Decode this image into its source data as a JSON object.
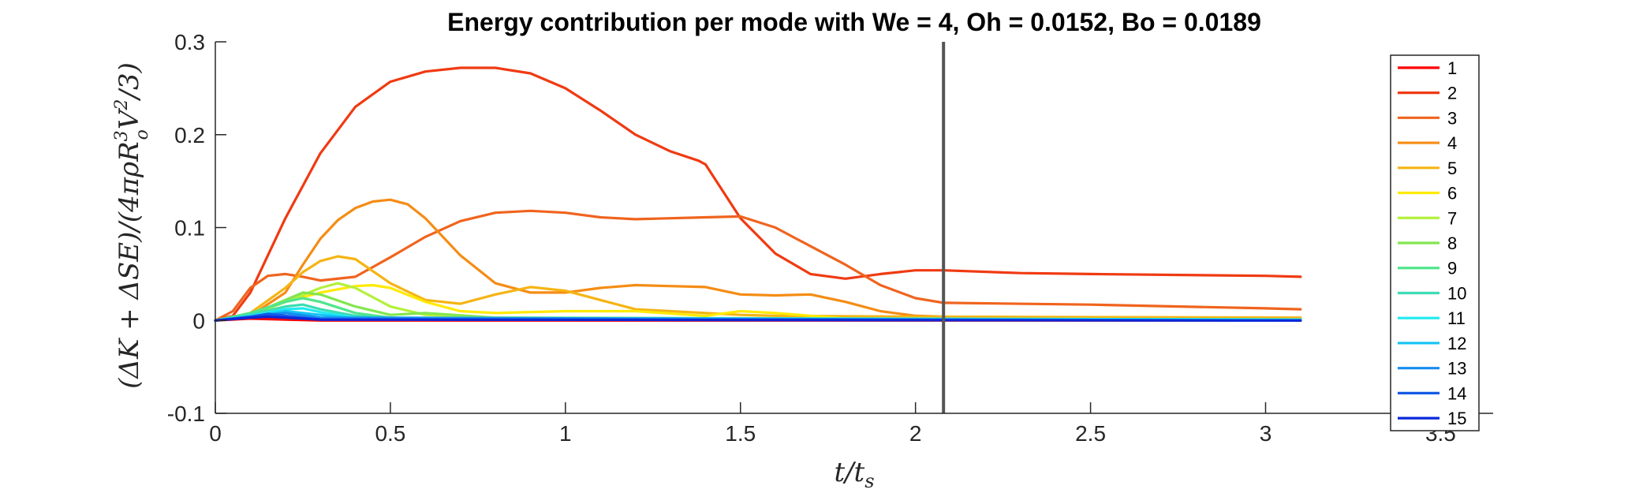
{
  "chart_data": {
    "type": "line",
    "title": "Energy contribution per mode with We = 4, Oh = 0.0152, Bo = 0.0189",
    "xlabel": "t/t_s",
    "ylabel": "(ΔK + ΔSE)/(4πρR_o³V²/3)",
    "xlim": [
      0,
      3.65
    ],
    "ylim": [
      -0.1,
      0.3
    ],
    "xticks": [
      0,
      0.5,
      1,
      1.5,
      2,
      2.5,
      3,
      3.5
    ],
    "xtick_labels": [
      "0",
      "0.5",
      "1",
      "1.5",
      "2",
      "2.5",
      "3",
      "3.5"
    ],
    "yticks": [
      -0.1,
      0,
      0.1,
      0.2,
      0.3
    ],
    "ytick_labels": [
      "-0.1",
      "0",
      "0.1",
      "0.2",
      "0.3"
    ],
    "grid": false,
    "legend_position": "right",
    "vertical_marker_x": 2.08,
    "vertical_marker_color": "#555555",
    "series": [
      {
        "name": "1",
        "color": "#ff0000",
        "x": [
          0,
          0.1,
          0.2,
          0.3,
          3.1
        ],
        "y": [
          0,
          0.002,
          0.001,
          0,
          0
        ]
      },
      {
        "name": "2",
        "color": "#f03a12",
        "x": [
          0,
          0.05,
          0.1,
          0.2,
          0.3,
          0.4,
          0.5,
          0.6,
          0.7,
          0.8,
          0.9,
          1.0,
          1.1,
          1.2,
          1.3,
          1.38,
          1.4,
          1.5,
          1.6,
          1.7,
          1.8,
          1.9,
          2.0,
          2.08,
          2.3,
          2.5,
          3.0,
          3.1
        ],
        "y": [
          0,
          0.005,
          0.03,
          0.11,
          0.18,
          0.23,
          0.257,
          0.268,
          0.272,
          0.272,
          0.266,
          0.25,
          0.226,
          0.2,
          0.182,
          0.172,
          0.168,
          0.11,
          0.072,
          0.05,
          0.045,
          0.05,
          0.054,
          0.054,
          0.051,
          0.05,
          0.048,
          0.047
        ]
      },
      {
        "name": "3",
        "color": "#f0641e",
        "x": [
          0,
          0.05,
          0.1,
          0.15,
          0.2,
          0.25,
          0.3,
          0.4,
          0.5,
          0.6,
          0.7,
          0.8,
          0.9,
          1.0,
          1.1,
          1.2,
          1.3,
          1.4,
          1.5,
          1.6,
          1.7,
          1.8,
          1.9,
          2.0,
          2.08,
          2.5,
          3.0,
          3.1
        ],
        "y": [
          0,
          0.01,
          0.035,
          0.048,
          0.05,
          0.047,
          0.043,
          0.047,
          0.068,
          0.09,
          0.107,
          0.116,
          0.118,
          0.116,
          0.111,
          0.109,
          0.11,
          0.111,
          0.112,
          0.1,
          0.08,
          0.06,
          0.038,
          0.024,
          0.019,
          0.017,
          0.013,
          0.012
        ]
      },
      {
        "name": "4",
        "color": "#f58c14",
        "x": [
          0,
          0.1,
          0.2,
          0.25,
          0.3,
          0.35,
          0.4,
          0.45,
          0.5,
          0.55,
          0.6,
          0.7,
          0.8,
          0.9,
          1.0,
          1.1,
          1.2,
          1.3,
          1.4,
          1.5,
          1.6,
          1.7,
          1.8,
          1.9,
          2.0,
          2.08,
          2.5,
          3.1
        ],
        "y": [
          0,
          0.005,
          0.03,
          0.06,
          0.088,
          0.108,
          0.121,
          0.128,
          0.13,
          0.125,
          0.11,
          0.07,
          0.04,
          0.03,
          0.03,
          0.035,
          0.038,
          0.037,
          0.036,
          0.028,
          0.027,
          0.028,
          0.02,
          0.01,
          0.005,
          0.004,
          0.003,
          0.002
        ]
      },
      {
        "name": "5",
        "color": "#f5b414",
        "x": [
          0,
          0.1,
          0.2,
          0.25,
          0.3,
          0.35,
          0.4,
          0.5,
          0.6,
          0.7,
          0.8,
          0.9,
          1.0,
          1.2,
          1.4,
          1.5,
          1.6,
          2.0,
          3.1
        ],
        "y": [
          0,
          0.008,
          0.035,
          0.052,
          0.064,
          0.069,
          0.066,
          0.04,
          0.022,
          0.018,
          0.028,
          0.036,
          0.032,
          0.012,
          0.008,
          0.006,
          0.005,
          0.004,
          0.003
        ]
      },
      {
        "name": "6",
        "color": "#ffea00",
        "x": [
          0,
          0.1,
          0.2,
          0.3,
          0.4,
          0.45,
          0.5,
          0.6,
          0.7,
          0.8,
          1.0,
          1.2,
          1.4,
          1.5,
          1.6,
          1.8,
          2.0,
          3.1
        ],
        "y": [
          0,
          0.006,
          0.02,
          0.03,
          0.037,
          0.038,
          0.035,
          0.02,
          0.01,
          0.008,
          0.01,
          0.01,
          0.005,
          0.01,
          0.008,
          0.002,
          0.001,
          0
        ]
      },
      {
        "name": "7",
        "color": "#b4f03c",
        "x": [
          0,
          0.1,
          0.2,
          0.3,
          0.35,
          0.4,
          0.5,
          0.6,
          0.8,
          1.2,
          3.1
        ],
        "y": [
          0,
          0.005,
          0.02,
          0.035,
          0.04,
          0.035,
          0.015,
          0.006,
          0.003,
          0.002,
          0.001
        ]
      },
      {
        "name": "8",
        "color": "#82e650",
        "x": [
          0,
          0.1,
          0.2,
          0.25,
          0.3,
          0.4,
          0.5,
          0.6,
          0.8,
          3.1
        ],
        "y": [
          0,
          0.006,
          0.022,
          0.03,
          0.028,
          0.015,
          0.006,
          0.008,
          0.003,
          0.001
        ]
      },
      {
        "name": "9",
        "color": "#50e68c",
        "x": [
          0,
          0.1,
          0.2,
          0.25,
          0.3,
          0.4,
          0.5,
          0.6,
          3.1
        ],
        "y": [
          0,
          0.008,
          0.02,
          0.024,
          0.02,
          0.008,
          0.003,
          0.002,
          0.001
        ]
      },
      {
        "name": "10",
        "color": "#3cdcb4",
        "x": [
          0,
          0.1,
          0.2,
          0.25,
          0.3,
          0.4,
          0.5,
          3.1
        ],
        "y": [
          0,
          0.006,
          0.015,
          0.017,
          0.012,
          0.005,
          0.002,
          0.001
        ]
      },
      {
        "name": "11",
        "color": "#1eebf0",
        "x": [
          0,
          0.1,
          0.2,
          0.25,
          0.3,
          0.4,
          3.1
        ],
        "y": [
          0,
          0.005,
          0.012,
          0.013,
          0.009,
          0.003,
          0.001
        ]
      },
      {
        "name": "12",
        "color": "#14c3f5",
        "x": [
          0,
          0.1,
          0.2,
          0.3,
          0.4,
          3.1
        ],
        "y": [
          0,
          0.004,
          0.01,
          0.006,
          0.002,
          0
        ]
      },
      {
        "name": "13",
        "color": "#148cf0",
        "x": [
          0,
          0.1,
          0.2,
          0.3,
          3.1
        ],
        "y": [
          0,
          0.004,
          0.008,
          0.003,
          0
        ]
      },
      {
        "name": "14",
        "color": "#145ae6",
        "x": [
          0,
          0.1,
          0.15,
          0.2,
          0.3,
          3.1
        ],
        "y": [
          0,
          0.004,
          0.007,
          0.005,
          0.001,
          0
        ]
      },
      {
        "name": "15",
        "color": "#0a28dc",
        "x": [
          0,
          0.1,
          0.15,
          0.2,
          0.3,
          3.1
        ],
        "y": [
          0,
          0.003,
          0.004,
          0.003,
          0.001,
          0
        ]
      }
    ]
  }
}
